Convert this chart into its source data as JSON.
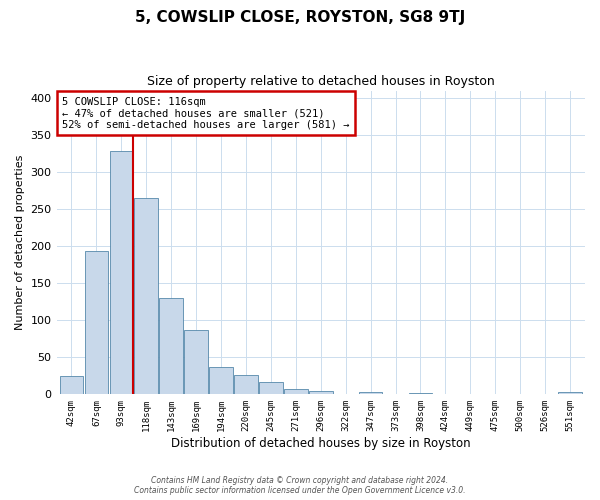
{
  "title": "5, COWSLIP CLOSE, ROYSTON, SG8 9TJ",
  "subtitle": "Size of property relative to detached houses in Royston",
  "xlabel": "Distribution of detached houses by size in Royston",
  "ylabel": "Number of detached properties",
  "bar_labels": [
    "42sqm",
    "67sqm",
    "93sqm",
    "118sqm",
    "143sqm",
    "169sqm",
    "194sqm",
    "220sqm",
    "245sqm",
    "271sqm",
    "296sqm",
    "322sqm",
    "347sqm",
    "373sqm",
    "398sqm",
    "424sqm",
    "449sqm",
    "475sqm",
    "500sqm",
    "526sqm",
    "551sqm"
  ],
  "bar_values": [
    25,
    193,
    328,
    265,
    130,
    87,
    37,
    26,
    16,
    7,
    4,
    0,
    3,
    0,
    2,
    0,
    0,
    0,
    0,
    0,
    3
  ],
  "bar_color": "#c8d8ea",
  "bar_edge_color": "#5588aa",
  "vline_color": "#cc0000",
  "annotation_text": "5 COWSLIP CLOSE: 116sqm\n← 47% of detached houses are smaller (521)\n52% of semi-detached houses are larger (581) →",
  "annotation_box_color": "#ffffff",
  "annotation_box_edge": "#cc0000",
  "ylim": [
    0,
    410
  ],
  "yticks": [
    0,
    50,
    100,
    150,
    200,
    250,
    300,
    350,
    400
  ],
  "footer_line1": "Contains HM Land Registry data © Crown copyright and database right 2024.",
  "footer_line2": "Contains public sector information licensed under the Open Government Licence v3.0.",
  "background_color": "#ffffff",
  "grid_color": "#ccddee"
}
